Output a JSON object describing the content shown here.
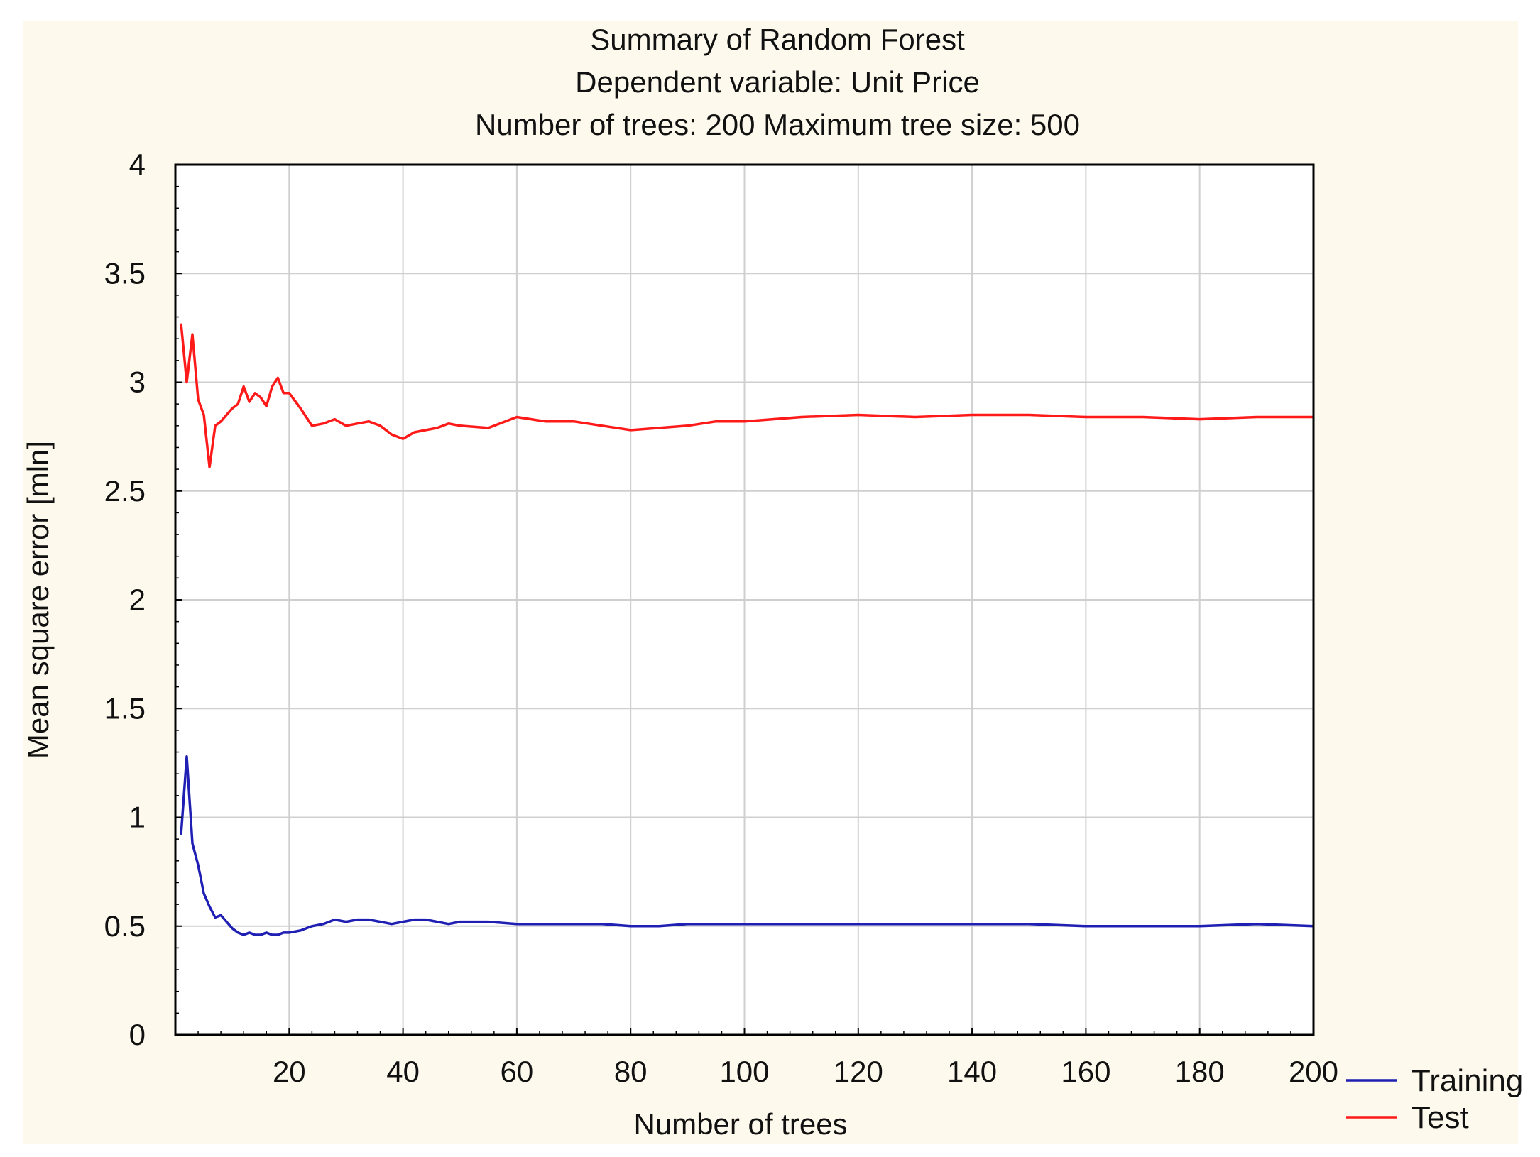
{
  "chart_data": {
    "type": "line",
    "title": [
      "Summary of Random Forest",
      "Dependent variable: Unit Price",
      "Number of trees: 200  Maximum tree size: 500"
    ],
    "xlabel": "Number of trees",
    "ylabel": "Mean square error [mln]",
    "xlim": [
      0,
      200
    ],
    "ylim": [
      0,
      4
    ],
    "xticks": [
      20,
      40,
      60,
      80,
      100,
      120,
      140,
      160,
      180,
      200
    ],
    "yticks": [
      0,
      0.5,
      1,
      1.5,
      2,
      2.5,
      3,
      3.5,
      4
    ],
    "xtick_labels": [
      "20",
      "40",
      "60",
      "80",
      "100",
      "120",
      "140",
      "160",
      "180",
      "200"
    ],
    "ytick_labels": [
      "0",
      "0.5",
      "1",
      "1.5",
      "2",
      "2.5",
      "3",
      "3.5",
      "4"
    ],
    "grid": true,
    "legend_position": "bottom-right-outside",
    "background_color": "#fdf9ec",
    "plot_background_color": "#ffffff",
    "series": [
      {
        "name": "Training",
        "color": "#1f1fb4",
        "x": [
          1,
          2,
          3,
          4,
          5,
          6,
          7,
          8,
          9,
          10,
          11,
          12,
          13,
          14,
          15,
          16,
          17,
          18,
          19,
          20,
          22,
          24,
          26,
          28,
          30,
          32,
          34,
          36,
          38,
          40,
          42,
          44,
          46,
          48,
          50,
          55,
          60,
          65,
          70,
          75,
          80,
          85,
          90,
          95,
          100,
          110,
          120,
          130,
          140,
          150,
          160,
          170,
          180,
          190,
          200
        ],
        "y": [
          0.92,
          1.28,
          0.88,
          0.78,
          0.65,
          0.59,
          0.54,
          0.55,
          0.52,
          0.49,
          0.47,
          0.46,
          0.47,
          0.46,
          0.46,
          0.47,
          0.46,
          0.46,
          0.47,
          0.47,
          0.48,
          0.5,
          0.51,
          0.53,
          0.52,
          0.53,
          0.53,
          0.52,
          0.51,
          0.52,
          0.53,
          0.53,
          0.52,
          0.51,
          0.52,
          0.52,
          0.51,
          0.51,
          0.51,
          0.51,
          0.5,
          0.5,
          0.51,
          0.51,
          0.51,
          0.51,
          0.51,
          0.51,
          0.51,
          0.51,
          0.5,
          0.5,
          0.5,
          0.51,
          0.5
        ]
      },
      {
        "name": "Test",
        "color": "#ff1a1a",
        "x": [
          1,
          2,
          3,
          4,
          5,
          6,
          7,
          8,
          9,
          10,
          11,
          12,
          13,
          14,
          15,
          16,
          17,
          18,
          19,
          20,
          22,
          24,
          26,
          28,
          30,
          32,
          34,
          36,
          38,
          40,
          42,
          44,
          46,
          48,
          50,
          55,
          60,
          65,
          70,
          75,
          80,
          85,
          90,
          95,
          100,
          110,
          120,
          130,
          140,
          150,
          160,
          170,
          180,
          190,
          200
        ],
        "y": [
          3.27,
          3.0,
          3.22,
          2.92,
          2.85,
          2.61,
          2.8,
          2.82,
          2.85,
          2.88,
          2.9,
          2.98,
          2.91,
          2.95,
          2.93,
          2.89,
          2.98,
          3.02,
          2.95,
          2.95,
          2.88,
          2.8,
          2.81,
          2.83,
          2.8,
          2.81,
          2.82,
          2.8,
          2.76,
          2.74,
          2.77,
          2.78,
          2.79,
          2.81,
          2.8,
          2.79,
          2.84,
          2.82,
          2.82,
          2.8,
          2.78,
          2.79,
          2.8,
          2.82,
          2.82,
          2.84,
          2.85,
          2.84,
          2.85,
          2.85,
          2.84,
          2.84,
          2.83,
          2.84,
          2.84
        ]
      }
    ]
  }
}
